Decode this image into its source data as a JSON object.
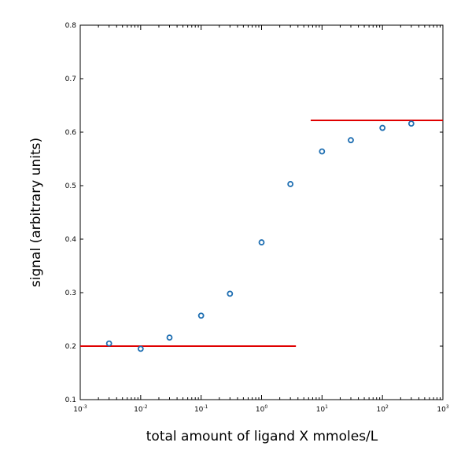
{
  "chart_data": {
    "type": "scatter",
    "title": "",
    "xlabel": "total amount of ligand X mmoles/L",
    "ylabel": "signal (arbitrary units)",
    "xscale": "log",
    "xlim": [
      0.001,
      1000
    ],
    "ylim": [
      0.1,
      0.8
    ],
    "grid": false,
    "x_tick_labels": [
      {
        "base": "10",
        "exp": "-3"
      },
      {
        "base": "10",
        "exp": "-2"
      },
      {
        "base": "10",
        "exp": "-1"
      },
      {
        "base": "10",
        "exp": "0"
      },
      {
        "base": "10",
        "exp": "1"
      },
      {
        "base": "10",
        "exp": "2"
      },
      {
        "base": "10",
        "exp": "3"
      }
    ],
    "y_tick_labels": [
      "0.1",
      "0.2",
      "0.3",
      "0.4",
      "0.5",
      "0.6",
      "0.7",
      "0.8"
    ],
    "series": [
      {
        "kind": "points",
        "marker_color": "#1f6fb2",
        "x": [
          0.003,
          0.01,
          0.03,
          0.1,
          0.3,
          1,
          3,
          10,
          30,
          100,
          300
        ],
        "y": [
          0.205,
          0.195,
          0.216,
          0.257,
          0.298,
          0.394,
          0.503,
          0.564,
          0.585,
          0.608,
          0.616
        ]
      },
      {
        "kind": "hline",
        "line_color": "#e00000",
        "x": [
          0.001,
          3.7
        ],
        "y": [
          0.2,
          0.2
        ]
      },
      {
        "kind": "hline",
        "line_color": "#e00000",
        "x": [
          6.5,
          1000
        ],
        "y": [
          0.622,
          0.622
        ]
      }
    ]
  }
}
